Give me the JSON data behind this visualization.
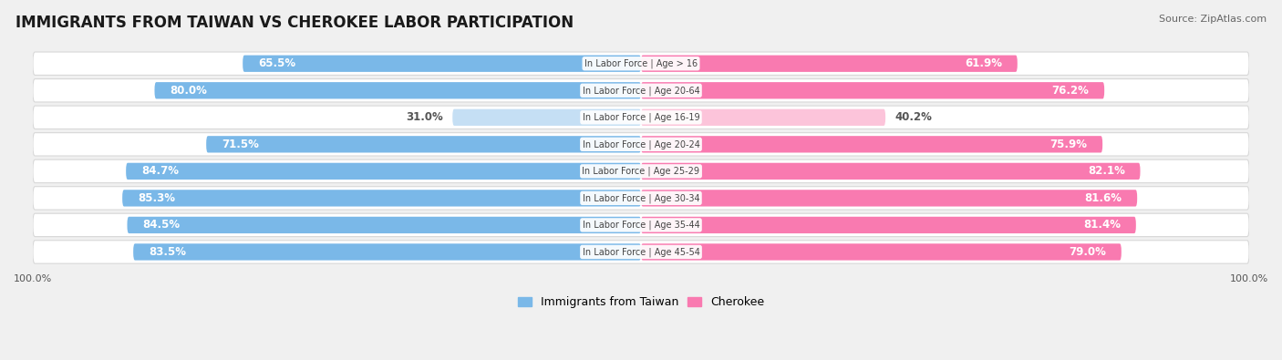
{
  "title": "IMMIGRANTS FROM TAIWAN VS CHEROKEE LABOR PARTICIPATION",
  "source": "Source: ZipAtlas.com",
  "categories": [
    "In Labor Force | Age > 16",
    "In Labor Force | Age 20-64",
    "In Labor Force | Age 16-19",
    "In Labor Force | Age 20-24",
    "In Labor Force | Age 25-29",
    "In Labor Force | Age 30-34",
    "In Labor Force | Age 35-44",
    "In Labor Force | Age 45-54"
  ],
  "taiwan_values": [
    65.5,
    80.0,
    31.0,
    71.5,
    84.7,
    85.3,
    84.5,
    83.5
  ],
  "cherokee_values": [
    61.9,
    76.2,
    40.2,
    75.9,
    82.1,
    81.6,
    81.4,
    79.0
  ],
  "taiwan_color": "#7ab8e8",
  "cherokee_color": "#f97ab0",
  "taiwan_color_light": "#c5dff4",
  "cherokee_color_light": "#fcc4da",
  "row_bg_color": "#ffffff",
  "row_edge_color": "#d8d8d8",
  "background_color": "#f0f0f0",
  "bar_height": 0.62,
  "max_value": 100.0,
  "label_fontsize": 8.5,
  "cat_fontsize": 7.0,
  "title_fontsize": 12,
  "source_fontsize": 8,
  "legend_fontsize": 9,
  "tick_fontsize": 8
}
